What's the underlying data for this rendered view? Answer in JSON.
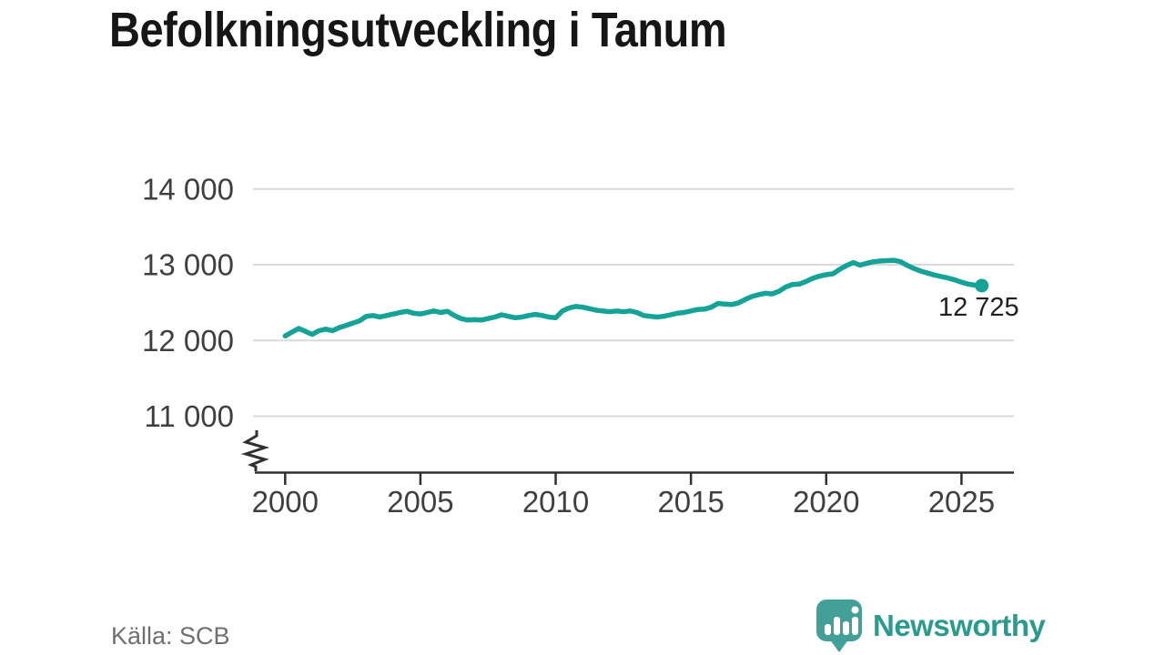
{
  "title": "Befolkningsutveckling i Tanum",
  "source": {
    "text": "Källa: SCB"
  },
  "branding": {
    "wordmark": "Newsworthy"
  },
  "colors": {
    "background": "#ffffff",
    "line": "#14a396",
    "grid": "#dadada",
    "axis": "#303030",
    "tick_text": "#3f3f3f",
    "title_text": "#161616",
    "source_text": "#6f6f6f",
    "annotation_text": "#1f1f1f",
    "logo_bubble": "#43a098",
    "logo_text": "#2b9a8f"
  },
  "chart_data": {
    "type": "line",
    "title": "Befolkningsutveckling i Tanum",
    "xlabel": "",
    "ylabel": "",
    "x_ticks": [
      2000,
      2005,
      2010,
      2015,
      2020,
      2025
    ],
    "x_tick_labels": [
      "2000",
      "2005",
      "2010",
      "2015",
      "2020",
      "2025"
    ],
    "y_ticks": [
      14000,
      13000,
      12000,
      11000
    ],
    "y_tick_labels": [
      "14 000",
      "13 000",
      "12 000",
      "11 000"
    ],
    "ylim_shown": [
      11000,
      14000
    ],
    "xlim": [
      2000,
      2026.3
    ],
    "axis_break": true,
    "grid": "horizontal",
    "legend": "none",
    "series": [
      {
        "name": "Befolkning i Tanum",
        "x_start": 2000,
        "x_step": 0.25,
        "values": [
          12060,
          12110,
          12160,
          12120,
          12080,
          12130,
          12150,
          12130,
          12170,
          12200,
          12230,
          12260,
          12320,
          12330,
          12310,
          12330,
          12350,
          12370,
          12385,
          12360,
          12350,
          12370,
          12390,
          12370,
          12385,
          12330,
          12290,
          12270,
          12275,
          12270,
          12290,
          12310,
          12340,
          12320,
          12300,
          12310,
          12330,
          12345,
          12330,
          12310,
          12300,
          12390,
          12430,
          12450,
          12440,
          12420,
          12400,
          12390,
          12380,
          12390,
          12380,
          12390,
          12370,
          12330,
          12320,
          12310,
          12320,
          12340,
          12360,
          12370,
          12390,
          12410,
          12415,
          12440,
          12490,
          12480,
          12475,
          12495,
          12540,
          12580,
          12605,
          12625,
          12615,
          12650,
          12705,
          12740,
          12745,
          12780,
          12820,
          12850,
          12870,
          12880,
          12940,
          12990,
          13030,
          12995,
          13020,
          13040,
          13050,
          13055,
          13060,
          13040,
          12990,
          12950,
          12915,
          12890,
          12865,
          12845,
          12825,
          12800,
          12770,
          12745,
          12730,
          12725
        ]
      }
    ],
    "end_annotation": {
      "x": 2025.75,
      "value": 12725,
      "label": "12 725"
    }
  }
}
